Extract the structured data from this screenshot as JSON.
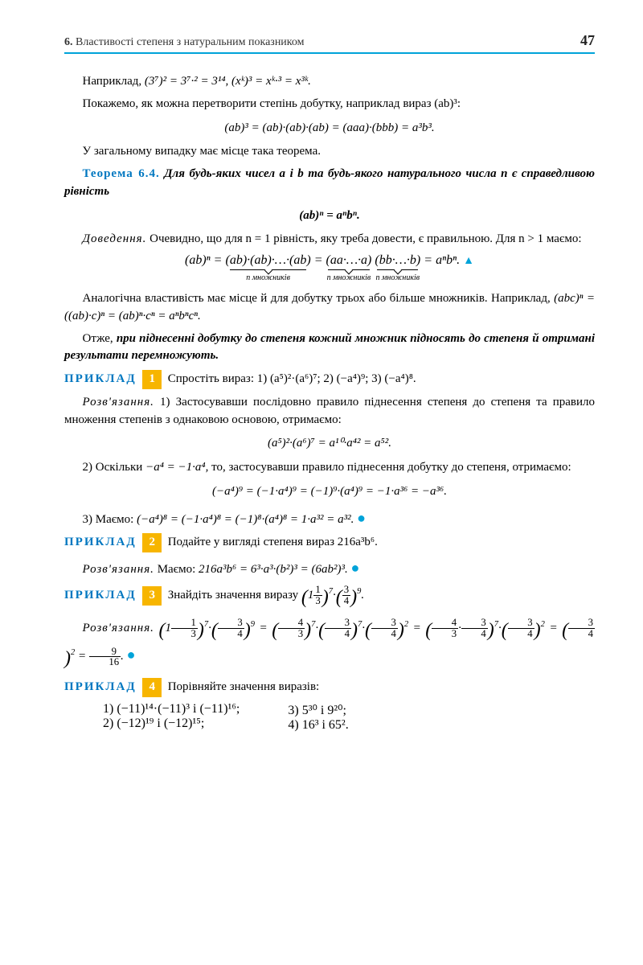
{
  "header": {
    "section": "6.",
    "title": "Властивості степеня з натуральним показником",
    "page": "47"
  },
  "p1_lead": "Наприклад,",
  "p1_math": "(3⁷)² = 3⁷·² = 3¹⁴,   (xᵏ)³ = xᵏ·³ = x³ᵏ.",
  "p2": "Покажемо, як можна перетворити степінь добутку, наприклад вираз (ab)³:",
  "f1": "(ab)³ = (ab)·(ab)·(ab) = (aaa)·(bbb) = a³b³.",
  "p3": "У загальному випадку має місце така теорема.",
  "theorem_label": "Теорема 6.4.",
  "theorem_text": "Для будь-яких чисел a і b та будь-якого натурального числа n є справедливою рівність",
  "f2": "(ab)ⁿ = aⁿbⁿ.",
  "proof_label": "Доведення.",
  "proof_text": "Очевидно, що для n = 1 рівність, яку треба довести, є правильною. Для n > 1 маємо:",
  "proof_formula": {
    "lhs": "(ab)ⁿ =",
    "g1": "(ab)·(ab)·…·(ab)",
    "eq1": "=",
    "g2": "(aa·…·a)",
    "g3": "(bb·…·b)",
    "rhs": "= aⁿbⁿ.",
    "label": "n множників"
  },
  "p4a": "Аналогічна властивість має місце й для добутку трьох або більше множників. Наприклад,",
  "p4b": "(abc)ⁿ = ((ab)·c)ⁿ = (ab)ⁿ·cⁿ = aⁿbⁿcⁿ.",
  "p5": "Отже, при піднесенні добутку до степеня кожний множник підносять до степеня й отримані результати перемножують.",
  "ex1_label": "ПРИКЛАД",
  "ex1_num": "1",
  "ex1_text": "Спростіть вираз: 1) (a⁵)²·(a⁶)⁷;   2) (−a⁴)⁹;   3) (−a⁴)⁸.",
  "ex1_sol_label": "Розв'язання.",
  "ex1_sol1": "1) Застосувавши послідовно правило піднесення степеня до степеня та правило множення степенів з однаковою основою, отримаємо:",
  "ex1_f1": "(a⁵)²·(a⁶)⁷ = a¹⁰·a⁴² = a⁵².",
  "ex1_sol2a": "2) Оскільки",
  "ex1_sol2b": "−a⁴ = −1·a⁴,",
  "ex1_sol2c": "то, застосувавши правило піднесення добутку до степеня, отримаємо:",
  "ex1_f2": "(−a⁴)⁹ = (−1·a⁴)⁹ = (−1)⁹·(a⁴)⁹ = −1·a³⁶ = −a³⁶.",
  "ex1_sol3": "3) Маємо:",
  "ex1_f3": "(−a⁴)⁸ = (−1·a⁴)⁸ = (−1)⁸·(a⁴)⁸ = 1·a³² = a³².",
  "ex2_num": "2",
  "ex2_text": "Подайте у вигляді степеня вираз 216a³b⁶.",
  "ex2_sol": "Маємо:",
  "ex2_f": "216a³b⁶ = 6³·a³·(b²)³ = (6ab²)³.",
  "ex3_num": "3",
  "ex3_text_a": "Знайдіть значення виразу",
  "ex4_num": "4",
  "ex4_text": "Порівняйте значення виразів:",
  "ex4_items": {
    "i1": "1) (−11)¹⁴·(−11)³  і  (−11)¹⁶;",
    "i2": "2) (−12)¹⁹  і  (−12)¹⁵;",
    "i3": "3) 5³⁰  і  9²⁰;",
    "i4": "4) 16³  і  65²."
  },
  "colors": {
    "accent": "#00a3d9",
    "blue_text": "#0077c0",
    "badge": "#f7b500"
  }
}
